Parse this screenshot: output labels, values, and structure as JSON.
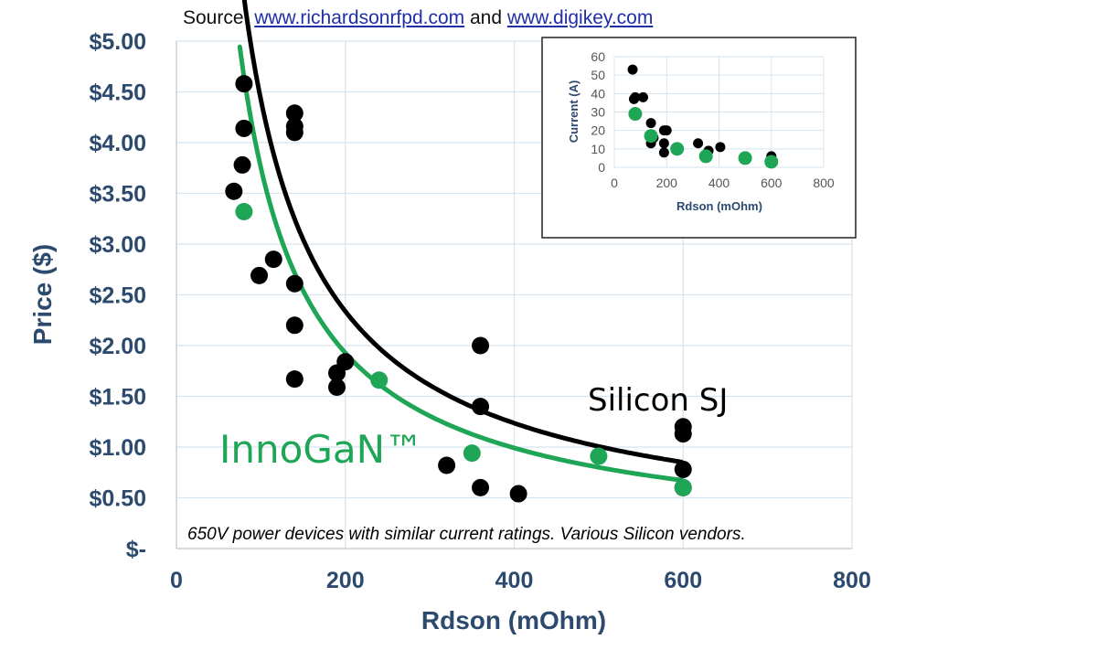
{
  "source": {
    "prefix": "Source: ",
    "link1": "www.richardsonrfpd.com",
    "middle": " and ",
    "link2": "www.digikey.com"
  },
  "colors": {
    "silicon": "#000000",
    "innogan": "#1fa556",
    "axis_text": "#2c4a6e",
    "grid": "#d6e4ef"
  },
  "chart_data": [
    {
      "type": "scatter",
      "xlabel": "Rdson (mOhm)",
      "ylabel": "Price ($)",
      "xlim": [
        0,
        800
      ],
      "ylim": [
        0,
        5
      ],
      "xticks": [
        {
          "v": 0,
          "label": "0"
        },
        {
          "v": 200,
          "label": "200"
        },
        {
          "v": 400,
          "label": "400"
        },
        {
          "v": 600,
          "label": "600"
        },
        {
          "v": 800,
          "label": "800"
        }
      ],
      "yticks": [
        {
          "v": 0,
          "label": "$-"
        },
        {
          "v": 0.5,
          "label": "$0.50"
        },
        {
          "v": 1.0,
          "label": "$1.00"
        },
        {
          "v": 1.5,
          "label": "$1.50"
        },
        {
          "v": 2.0,
          "label": "$2.00"
        },
        {
          "v": 2.5,
          "label": "$2.50"
        },
        {
          "v": 3.0,
          "label": "$3.00"
        },
        {
          "v": 3.5,
          "label": "$3.50"
        },
        {
          "v": 4.0,
          "label": "$4.00"
        },
        {
          "v": 4.5,
          "label": "$4.50"
        },
        {
          "v": 5.0,
          "label": "$5.00"
        }
      ],
      "grid": true,
      "annotation": "650V power devices with similar current ratings. Various Silicon vendors.",
      "series": [
        {
          "name": "Silicon SJ",
          "color": "#000000",
          "points": [
            [
              80,
              4.58
            ],
            [
              80,
              4.14
            ],
            [
              78,
              3.78
            ],
            [
              68,
              3.52
            ],
            [
              140,
              4.29
            ],
            [
              140,
              4.16
            ],
            [
              140,
              4.1
            ],
            [
              115,
              2.85
            ],
            [
              98,
              2.69
            ],
            [
              140,
              2.61
            ],
            [
              140,
              2.2
            ],
            [
              140,
              1.67
            ],
            [
              200,
              1.84
            ],
            [
              190,
              1.73
            ],
            [
              190,
              1.59
            ],
            [
              360,
              2.0
            ],
            [
              360,
              1.4
            ],
            [
              320,
              0.82
            ],
            [
              360,
              0.6
            ],
            [
              405,
              0.54
            ],
            [
              600,
              1.2
            ],
            [
              600,
              1.13
            ],
            [
              600,
              0.78
            ],
            [
              600,
              0.6
            ]
          ],
          "trend": {
            "a": 306,
            "b": -0.92,
            "x_range": [
              70,
              600
            ]
          }
        },
        {
          "name": "InnoGaN™",
          "color": "#1fa556",
          "points": [
            [
              80,
              3.32
            ],
            [
              240,
              1.66
            ],
            [
              350,
              0.94
            ],
            [
              500,
              0.91
            ],
            [
              600,
              0.6
            ]
          ],
          "trend": {
            "a": 312,
            "b": -0.96,
            "x_range": [
              75,
              600
            ]
          }
        }
      ]
    },
    {
      "type": "scatter",
      "xlabel": "Rdson (mOhm)",
      "ylabel": "Current  (A)",
      "xlim": [
        0,
        800
      ],
      "ylim": [
        0,
        60
      ],
      "xticks": [
        {
          "v": 0,
          "label": "0"
        },
        {
          "v": 200,
          "label": "200"
        },
        {
          "v": 400,
          "label": "400"
        },
        {
          "v": 600,
          "label": "600"
        },
        {
          "v": 800,
          "label": "800"
        }
      ],
      "yticks": [
        {
          "v": 0,
          "label": "0"
        },
        {
          "v": 10,
          "label": "10"
        },
        {
          "v": 20,
          "label": "20"
        },
        {
          "v": 30,
          "label": "30"
        },
        {
          "v": 40,
          "label": "40"
        },
        {
          "v": 50,
          "label": "50"
        },
        {
          "v": 60,
          "label": "60"
        }
      ],
      "grid": true,
      "series": [
        {
          "name": "Silicon",
          "color": "#000000",
          "points": [
            [
              70,
              53
            ],
            [
              80,
              38
            ],
            [
              75,
              37
            ],
            [
              110,
              38
            ],
            [
              140,
              24
            ],
            [
              150,
              16
            ],
            [
              140,
              13
            ],
            [
              190,
              20
            ],
            [
              200,
              20
            ],
            [
              190,
              13
            ],
            [
              190,
              8
            ],
            [
              320,
              13
            ],
            [
              360,
              9
            ],
            [
              405,
              11
            ],
            [
              600,
              6
            ]
          ]
        },
        {
          "name": "InnoGaN",
          "color": "#1fa556",
          "points": [
            [
              80,
              29
            ],
            [
              140,
              17
            ],
            [
              240,
              10
            ],
            [
              350,
              6
            ],
            [
              500,
              5
            ],
            [
              600,
              3
            ]
          ]
        }
      ]
    }
  ]
}
